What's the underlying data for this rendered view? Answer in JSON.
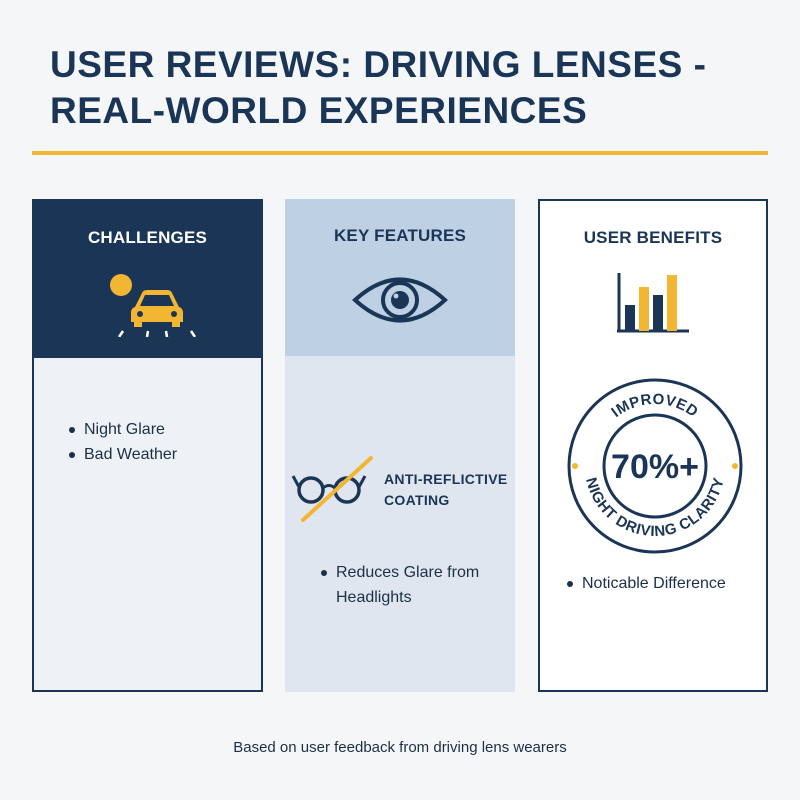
{
  "header": {
    "title": "USER REVIEWS: DRIVING LENSES - REAL-WORLD EXPERIENCES"
  },
  "columns": {
    "challenges": {
      "title": "CHALLENGES",
      "icon": "car-sun-icon",
      "items": [
        "Night Glare",
        "Bad Weather"
      ]
    },
    "features": {
      "title": "KEY FEATURES",
      "icon": "eye-icon",
      "feature_icon": "glasses-icon",
      "feature_line1": "ANTI-REFLICTIVE",
      "feature_line2": "COATING",
      "items": [
        "Reduces Glare from Headlights"
      ]
    },
    "benefits": {
      "title": "USER BENEFITS",
      "icon": "bar-chart-icon",
      "badge": {
        "top_text": "IMPROVED",
        "value": "70%+",
        "bottom_text": "NIGHT DRIVING CLARITY"
      },
      "items": [
        "Noticable Difference"
      ]
    }
  },
  "footer": {
    "note": "Based on user feedback from driving lens wearers"
  },
  "colors": {
    "navy": "#1b3556",
    "accent": "#f2b632",
    "light_blue": "#bed1e4"
  }
}
